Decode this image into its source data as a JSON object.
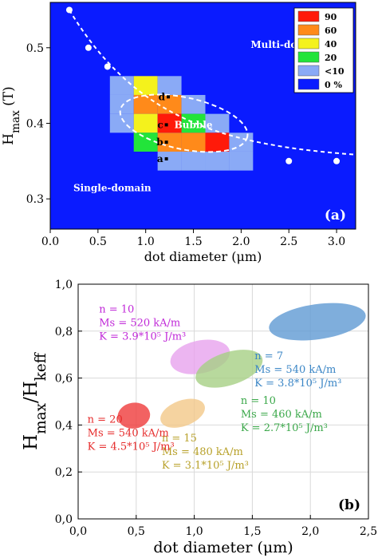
{
  "chart_data": [
    {
      "type": "heatmap",
      "panel_label": "(a)",
      "xlabel": "dot diameter (μm)",
      "ylabel": "H_max (T)",
      "xlim": [
        0.0,
        3.2
      ],
      "ylim": [
        0.26,
        0.56
      ],
      "x_ticks": [
        "0.0",
        "0.5",
        "1.0",
        "1.5",
        "2.0",
        "2.5",
        "3.0"
      ],
      "y_ticks": [
        "0.3",
        "0.4",
        "0.5"
      ],
      "grid": false,
      "background_color": "#0a1bff",
      "legend_position": "top-right",
      "legend": [
        {
          "label": "90",
          "color": "#ff1a0a"
        },
        {
          "label": "60",
          "color": "#ff8a1a"
        },
        {
          "label": "40",
          "color": "#f4f21c"
        },
        {
          "label": "20",
          "color": "#22e43a"
        },
        {
          "label": "<10",
          "color": "#8aaaf6"
        },
        {
          "label": "0 %",
          "color": "#0a1bff"
        }
      ],
      "cell_width": 0.25,
      "cell_height": 0.025,
      "cells": [
        {
          "x": 0.75,
          "y": 0.45,
          "bin": "<10"
        },
        {
          "x": 1.0,
          "y": 0.45,
          "bin": "40"
        },
        {
          "x": 1.25,
          "y": 0.45,
          "bin": "<10"
        },
        {
          "x": 0.75,
          "y": 0.425,
          "bin": "<10"
        },
        {
          "x": 1.0,
          "y": 0.425,
          "bin": "60"
        },
        {
          "x": 1.25,
          "y": 0.425,
          "bin": "60"
        },
        {
          "x": 1.5,
          "y": 0.425,
          "bin": "<10"
        },
        {
          "x": 0.75,
          "y": 0.4,
          "bin": "<10"
        },
        {
          "x": 1.0,
          "y": 0.4,
          "bin": "40"
        },
        {
          "x": 1.25,
          "y": 0.4,
          "bin": "90"
        },
        {
          "x": 1.5,
          "y": 0.4,
          "bin": "20"
        },
        {
          "x": 1.75,
          "y": 0.4,
          "bin": "<10"
        },
        {
          "x": 1.0,
          "y": 0.375,
          "bin": "20"
        },
        {
          "x": 1.25,
          "y": 0.375,
          "bin": "60"
        },
        {
          "x": 1.5,
          "y": 0.375,
          "bin": "60"
        },
        {
          "x": 1.75,
          "y": 0.375,
          "bin": "90"
        },
        {
          "x": 2.0,
          "y": 0.375,
          "bin": "<10"
        },
        {
          "x": 1.25,
          "y": 0.35,
          "bin": "<10"
        },
        {
          "x": 1.5,
          "y": 0.35,
          "bin": "<10"
        },
        {
          "x": 1.75,
          "y": 0.35,
          "bin": "<10"
        },
        {
          "x": 2.0,
          "y": 0.35,
          "bin": "<10"
        }
      ],
      "boundary_curve": {
        "style": "dashed-white",
        "points": [
          {
            "x": 0.2,
            "y": 0.55
          },
          {
            "x": 0.4,
            "y": 0.5
          },
          {
            "x": 0.6,
            "y": 0.475
          },
          {
            "x": 2.5,
            "y": 0.35
          },
          {
            "x": 3.0,
            "y": 0.35
          }
        ]
      },
      "point_labels": [
        {
          "text": "d",
          "x": 1.22,
          "y": 0.435
        },
        {
          "text": "c",
          "x": 1.2,
          "y": 0.398
        },
        {
          "text": "b",
          "x": 1.2,
          "y": 0.375
        },
        {
          "text": "a",
          "x": 1.2,
          "y": 0.353
        }
      ],
      "region_labels": [
        {
          "text": "Multi-domain",
          "x": 2.1,
          "y": 0.5
        },
        {
          "text": "Bubble",
          "x": 1.5,
          "y": 0.398
        },
        {
          "text": "Single-domain",
          "x": 0.65,
          "y": 0.31
        }
      ]
    },
    {
      "type": "scatter",
      "panel_label": "(b)",
      "xlabel": "dot diameter (μm)",
      "ylabel": "H_max/H_keff",
      "xlim": [
        0.0,
        2.5
      ],
      "ylim": [
        0.0,
        1.0
      ],
      "x_ticks": [
        "0,0",
        "0,5",
        "1,0",
        "1,5",
        "2,0",
        "2,5"
      ],
      "y_ticks": [
        "0,0",
        "0,2",
        "0,4",
        "0,6",
        "0,8",
        "1,0"
      ],
      "grid": true,
      "series": [
        {
          "color": "#e7a3ee",
          "center": [
            1.05,
            0.69
          ],
          "rx": 0.26,
          "ry": 0.07,
          "angle_deg": -12,
          "label_lines": [
            "n = 10",
            "Ms = 520 kA/m",
            "K = 3.9*10⁵ J/m³"
          ],
          "label_color": "#c028d8",
          "label_anchor": [
            0.18,
            0.88
          ]
        },
        {
          "color": "#a6cf84",
          "center": [
            1.3,
            0.64
          ],
          "rx": 0.3,
          "ry": 0.07,
          "angle_deg": -18,
          "label_lines": [
            "n = 10",
            "Ms = 460 kA/m",
            "K = 2.7*10⁵ J/m³"
          ],
          "label_color": "#3ba84a",
          "label_anchor": [
            1.4,
            0.49
          ]
        },
        {
          "color": "#5f9ad3",
          "center": [
            2.06,
            0.84
          ],
          "rx": 0.42,
          "ry": 0.075,
          "angle_deg": -8,
          "label_lines": [
            "n = 7",
            "Ms = 540 kA/m",
            "K = 3.8*10⁵ J/m³"
          ],
          "label_color": "#3b86c6",
          "label_anchor": [
            1.52,
            0.68
          ]
        },
        {
          "color": "#f3c888",
          "center": [
            0.9,
            0.45
          ],
          "rx": 0.2,
          "ry": 0.055,
          "angle_deg": -20,
          "label_lines": [
            "n = 15",
            "Ms = 480 kA/m",
            "K = 3.1*10⁵ J/m³"
          ],
          "label_color": "#b8a12a",
          "label_anchor": [
            0.72,
            0.33
          ]
        },
        {
          "color": "#ef3b3b",
          "center": [
            0.48,
            0.44
          ],
          "rx": 0.14,
          "ry": 0.055,
          "angle_deg": -8,
          "label_lines": [
            "n = 20",
            "Ms = 540 kA/m",
            "K = 4.5*10⁵ J/m³"
          ],
          "label_color": "#e62a2a",
          "label_anchor": [
            0.08,
            0.41
          ]
        }
      ]
    }
  ]
}
